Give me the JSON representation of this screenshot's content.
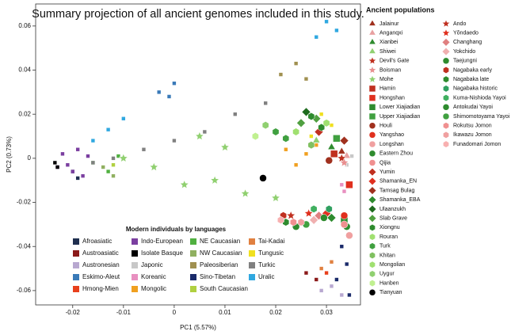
{
  "chart_data": {
    "type": "scatter",
    "title": "Summary projection of all ancient genomes included in this study.",
    "x_label": "PC1  (5.57%)",
    "y_label": "PC2  (0.73%)",
    "xlim": [
      -0.0273,
      0.0367
    ],
    "ylim": [
      -0.0665,
      0.07
    ],
    "xticks": [
      -0.02,
      -0.01,
      0,
      0.01,
      0.02,
      0.03
    ],
    "yticks": [
      -0.06,
      -0.04,
      -0.02,
      0,
      0.02,
      0.04,
      0.06
    ],
    "modern": {
      "title": "Modern individuals by languages",
      "series": [
        {
          "name": "Afroasiatic",
          "color": "#1f2f4f",
          "x": [
            -0.02,
            -0.019
          ],
          "y": [
            -0.006,
            -0.009
          ]
        },
        {
          "name": "Austroasiatic",
          "color": "#8b1a1a",
          "x": [
            0.026,
            0.028
          ],
          "y": [
            -0.052,
            -0.055
          ]
        },
        {
          "name": "Austronesian",
          "color": "#b8a8d0",
          "x": [
            0.031,
            0.033,
            0.029
          ],
          "y": [
            -0.058,
            -0.062,
            -0.06
          ]
        },
        {
          "name": "Eskimo-Aleut",
          "color": "#3a7ab8",
          "x": [
            -0.003,
            0.0,
            -0.001
          ],
          "y": [
            0.03,
            0.034,
            0.028
          ]
        },
        {
          "name": "Hmong-Mien",
          "color": "#e8401c",
          "x": [
            0.03
          ],
          "y": [
            -0.052
          ]
        },
        {
          "name": "Indo-European",
          "color": "#7b3fa0",
          "x": [
            -0.022,
            -0.021,
            -0.019,
            -0.02,
            -0.017,
            -0.023,
            -0.018
          ],
          "y": [
            0.002,
            -0.003,
            0.004,
            -0.006,
            0.001,
            -0.004,
            -0.008
          ]
        },
        {
          "name": "Isolate Basque",
          "color": "#000000",
          "x": [
            -0.0235,
            -0.023
          ],
          "y": [
            -0.002,
            -0.004
          ]
        },
        {
          "name": "Japonic",
          "color": "#c8c8c8",
          "x": [
            0.034,
            0.035
          ],
          "y": [
            -0.003,
            0.001
          ]
        },
        {
          "name": "Koreanic",
          "color": "#e890c0",
          "x": [
            0.033,
            0.0335
          ],
          "y": [
            -0.012,
            -0.015
          ]
        },
        {
          "name": "Mongolic",
          "color": "#f0a020",
          "x": [
            0.026,
            0.024,
            0.028,
            0.022
          ],
          "y": [
            0.002,
            -0.003,
            0.006,
            0.004
          ]
        },
        {
          "name": "NE Caucasian",
          "color": "#50b040",
          "x": [
            -0.016,
            -0.013,
            -0.011
          ],
          "y": [
            -0.002,
            -0.006,
            0.001
          ]
        },
        {
          "name": "NW Caucasian",
          "color": "#90b060",
          "x": [
            -0.014,
            -0.012
          ],
          "y": [
            -0.004,
            -0.008
          ]
        },
        {
          "name": "Paleosiberian",
          "color": "#a09050",
          "x": [
            0.021,
            0.024,
            0.026
          ],
          "y": [
            0.038,
            0.043,
            0.036
          ]
        },
        {
          "name": "Sino-Tibetan",
          "color": "#1a2a6a",
          "x": [
            0.033,
            0.034,
            0.032,
            0.0345
          ],
          "y": [
            -0.04,
            -0.048,
            -0.055,
            -0.062
          ]
        },
        {
          "name": "South Caucasian",
          "color": "#b0d040",
          "x": [
            -0.012
          ],
          "y": [
            -0.003
          ]
        },
        {
          "name": "Tai-Kadai",
          "color": "#e08040",
          "x": [
            0.029,
            0.031
          ],
          "y": [
            -0.05,
            -0.047
          ]
        },
        {
          "name": "Tungusic",
          "color": "#f0e020",
          "x": [
            0.029,
            0.031,
            0.027
          ],
          "y": [
            0.02,
            0.015,
            0.01
          ]
        },
        {
          "name": "Turkic",
          "color": "#808080",
          "x": [
            -0.012,
            -0.006,
            0.0,
            0.006,
            0.012,
            0.018,
            -0.016
          ],
          "y": [
            0.0,
            0.004,
            0.008,
            0.012,
            0.02,
            0.025,
            -0.002
          ]
        },
        {
          "name": "Uralic",
          "color": "#30a8e0",
          "x": [
            -0.016,
            -0.013,
            -0.01,
            0.03,
            0.032,
            0.028
          ],
          "y": [
            0.008,
            0.013,
            0.018,
            0.062,
            0.058,
            0.055
          ]
        }
      ]
    },
    "ancient": {
      "title": "Ancient populations",
      "series": [
        {
          "name": "Jalainur",
          "color": "#a0301e",
          "marker": "triangle",
          "x": [
            0.033
          ],
          "y": [
            0.003
          ]
        },
        {
          "name": "Anganqxi",
          "color": "#e8a0a0",
          "marker": "triangle",
          "x": [
            0.034
          ],
          "y": [
            0.001
          ]
        },
        {
          "name": "Xianbei",
          "color": "#2e8b2e",
          "marker": "triangle",
          "x": [
            0.031
          ],
          "y": [
            0.005
          ]
        },
        {
          "name": "Shiwei",
          "color": "#90d070",
          "marker": "triangle",
          "x": [
            0.028
          ],
          "y": [
            0.008
          ]
        },
        {
          "name": "Devil's Gate",
          "color": "#c03020",
          "marker": "star",
          "x": [
            0.033
          ],
          "y": [
            0.0
          ]
        },
        {
          "name": "Boisman",
          "color": "#e89090",
          "marker": "star",
          "x": [
            0.0335
          ],
          "y": [
            -0.002
          ]
        },
        {
          "name": "Mohe",
          "color": "#90d070",
          "marker": "star",
          "x": [
            -0.01,
            -0.004,
            0.002,
            0.008,
            0.014,
            0.02,
            0.01,
            0.005
          ],
          "y": [
            0.0,
            -0.004,
            -0.012,
            -0.01,
            -0.016,
            -0.018,
            0.005,
            0.01
          ]
        },
        {
          "name": "Hamin",
          "color": "#c03020",
          "marker": "square",
          "x": [
            0.0315
          ],
          "y": [
            0.002
          ]
        },
        {
          "name": "Hongshan",
          "color": "#e0301e",
          "marker": "square",
          "x": [
            0.0345
          ],
          "y": [
            -0.012
          ]
        },
        {
          "name": "Lower Xiajiadian",
          "color": "#2e8b2e",
          "marker": "square",
          "x": [
            0.0335
          ],
          "y": [
            -0.028
          ]
        },
        {
          "name": "Upper Xiajiadian",
          "color": "#40a040",
          "marker": "square",
          "x": [
            0.032
          ],
          "y": [
            0.009
          ]
        },
        {
          "name": "Houli",
          "color": "#a0301e",
          "marker": "circle",
          "x": [
            0.0305
          ],
          "y": [
            -0.001
          ]
        },
        {
          "name": "Yangshao",
          "color": "#e0301e",
          "marker": "circle",
          "x": [
            0.0335
          ],
          "y": [
            -0.026
          ]
        },
        {
          "name": "Longshan",
          "color": "#f0a0a0",
          "marker": "circle",
          "x": [
            0.0345
          ],
          "y": [
            -0.035
          ]
        },
        {
          "name": "Eastern Zhou",
          "color": "#2e8b2e",
          "marker": "circle",
          "x": [
            0.034
          ],
          "y": [
            -0.031
          ]
        },
        {
          "name": "Qijia",
          "color": "#f09090",
          "marker": "circle",
          "x": [
            0.0335
          ],
          "y": [
            -0.03
          ]
        },
        {
          "name": "Yumin",
          "color": "#c03020",
          "marker": "diamond",
          "x": [
            0.0285
          ],
          "y": [
            0.012
          ]
        },
        {
          "name": "Shamanka_EN",
          "color": "#e03020",
          "marker": "diamond",
          "x": [
            0.03
          ],
          "y": [
            -0.025
          ]
        },
        {
          "name": "Tamsag Bulag",
          "color": "#a0301e",
          "marker": "diamond",
          "x": [
            0.0335
          ],
          "y": [
            0.008
          ]
        },
        {
          "name": "Shamanka_EBA",
          "color": "#2e8b2e",
          "marker": "diamond",
          "x": [
            0.031
          ],
          "y": [
            -0.027
          ]
        },
        {
          "name": "Ulaanzukh",
          "color": "#1e6b1e",
          "marker": "diamond",
          "x": [
            0.026
          ],
          "y": [
            0.021
          ]
        },
        {
          "name": "Slab Grave",
          "color": "#50a040",
          "marker": "diamond",
          "x": [
            0.025,
            0.028
          ],
          "y": [
            0.016,
            0.018
          ]
        },
        {
          "name": "Xiongnu",
          "color": "#2e8b2e",
          "marker": "hexagon",
          "x": [
            0.029,
            0.027
          ],
          "y": [
            0.014,
            0.019
          ]
        },
        {
          "name": "Rouran",
          "color": "#a0e070",
          "marker": "hexagon",
          "x": [
            0.03
          ],
          "y": [
            0.016
          ]
        },
        {
          "name": "Turk",
          "color": "#40a040",
          "marker": "hexagon",
          "x": [
            0.022,
            0.02
          ],
          "y": [
            0.009,
            0.012
          ]
        },
        {
          "name": "Khitan",
          "color": "#80c060",
          "marker": "hexagon",
          "x": [
            0.027
          ],
          "y": [
            0.006
          ]
        },
        {
          "name": "Mongolian",
          "color": "#a0e070",
          "marker": "hexagon",
          "x": [
            0.024
          ],
          "y": [
            0.012
          ]
        },
        {
          "name": "Uygur",
          "color": "#90d070",
          "marker": "hexagon",
          "x": [
            0.018
          ],
          "y": [
            0.015
          ]
        },
        {
          "name": "Hanben",
          "color": "#c0f090",
          "marker": "hexagon",
          "x": [
            0.016
          ],
          "y": [
            0.01
          ]
        },
        {
          "name": "Tianyuan",
          "color": "#000000",
          "marker": "circle",
          "x": [
            0.0175
          ],
          "y": [
            -0.009
          ]
        },
        {
          "name": "Ando",
          "color": "#c03020",
          "marker": "star",
          "x": [
            0.023
          ],
          "y": [
            -0.026
          ]
        },
        {
          "name": "Yŏndaedo",
          "color": "#e0301e",
          "marker": "star",
          "x": [
            0.0265
          ],
          "y": [
            -0.025
          ]
        },
        {
          "name": "Changhang",
          "color": "#e08080",
          "marker": "diamond",
          "x": [
            0.0285
          ],
          "y": [
            -0.026
          ]
        },
        {
          "name": "Yokchido",
          "color": "#f0b0b0",
          "marker": "diamond",
          "x": [
            0.0275
          ],
          "y": [
            -0.028
          ]
        },
        {
          "name": "Taejungni",
          "color": "#2e8b2e",
          "marker": "circle",
          "x": [
            0.0295
          ],
          "y": [
            -0.027
          ]
        },
        {
          "name": "Nagabaka early",
          "color": "#c03020",
          "marker": "hexagon",
          "x": [
            0.0215
          ],
          "y": [
            -0.026
          ]
        },
        {
          "name": "Nagabaka late",
          "color": "#2e8b2e",
          "marker": "hexagon",
          "x": [
            0.022
          ],
          "y": [
            -0.029
          ]
        },
        {
          "name": "Nagabaka historic",
          "color": "#30a060",
          "marker": "hexagon",
          "x": [
            0.0305
          ],
          "y": [
            -0.023
          ]
        },
        {
          "name": "Kuma-Nishioda Yayoi",
          "color": "#40b060",
          "marker": "hexagon",
          "x": [
            0.0275
          ],
          "y": [
            -0.023
          ]
        },
        {
          "name": "Antokudai Yayoi",
          "color": "#2e8b2e",
          "marker": "circle",
          "x": [
            0.024
          ],
          "y": [
            -0.031
          ]
        },
        {
          "name": "Shimomotoyama Yayoi",
          "color": "#40a040",
          "marker": "circle",
          "x": [
            0.026
          ],
          "y": [
            -0.03
          ]
        },
        {
          "name": "Rokutsu Jomon",
          "color": "#f09090",
          "marker": "hexagon",
          "x": [
            0.0235
          ],
          "y": [
            -0.029
          ]
        },
        {
          "name": "Ikawazu Jomon",
          "color": "#f0a0a0",
          "marker": "hexagon",
          "x": [
            0.025
          ],
          "y": [
            -0.029
          ]
        },
        {
          "name": "Funadomari Jomon",
          "color": "#f8b0b0",
          "marker": "hexagon",
          "x": [
            0.021
          ],
          "y": [
            -0.028
          ]
        }
      ]
    }
  }
}
